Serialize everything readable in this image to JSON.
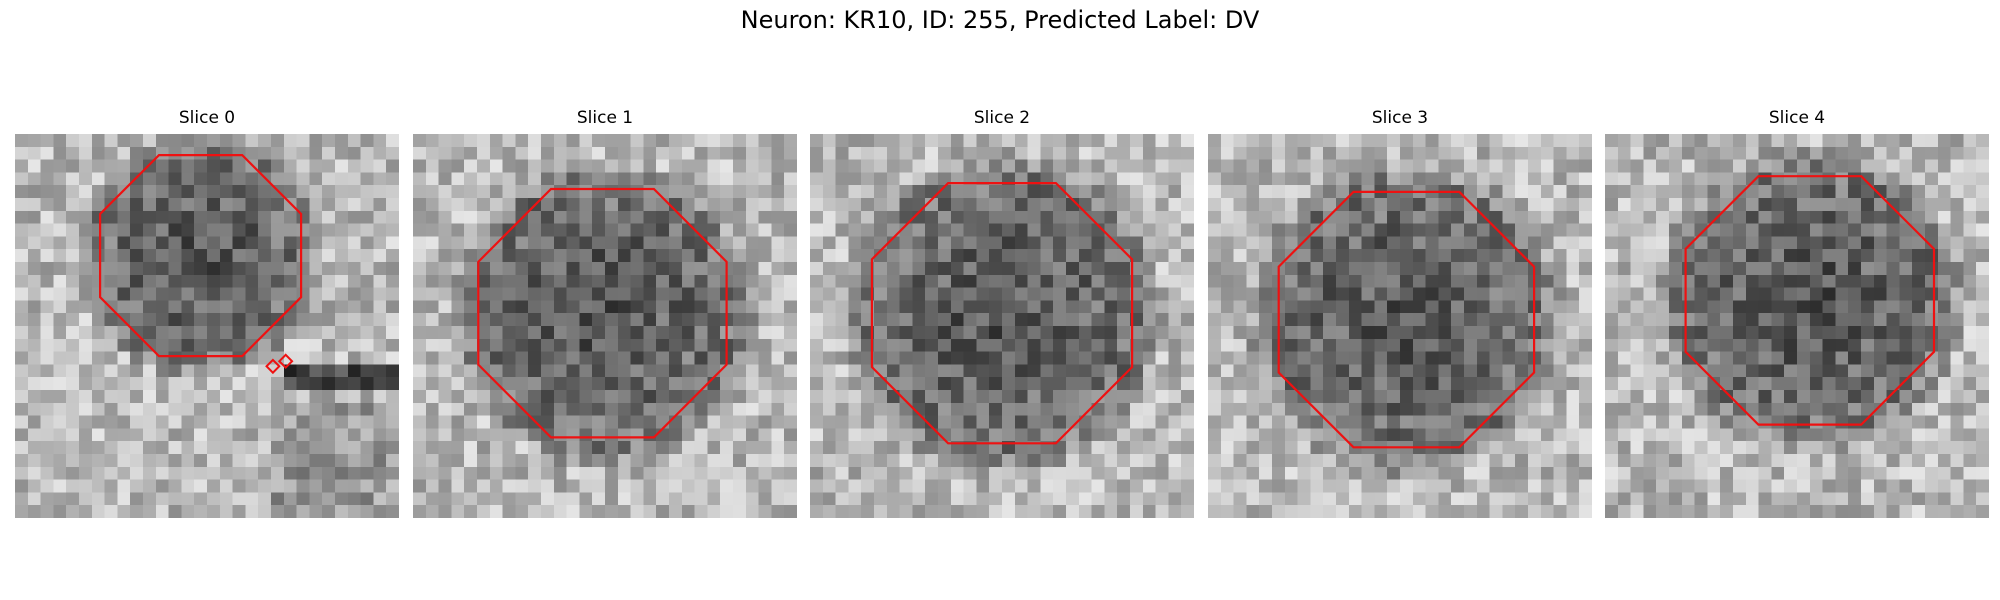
{
  "figure": {
    "title": "Neuron: KR10, ID: 255, Predicted Label: DV",
    "contour_color": "#ee1111",
    "pixel_grid": 30,
    "slices": [
      {
        "label": "Slice 0"
      },
      {
        "label": "Slice 1"
      },
      {
        "label": "Slice 2"
      },
      {
        "label": "Slice 3"
      },
      {
        "label": "Slice 4"
      }
    ]
  }
}
